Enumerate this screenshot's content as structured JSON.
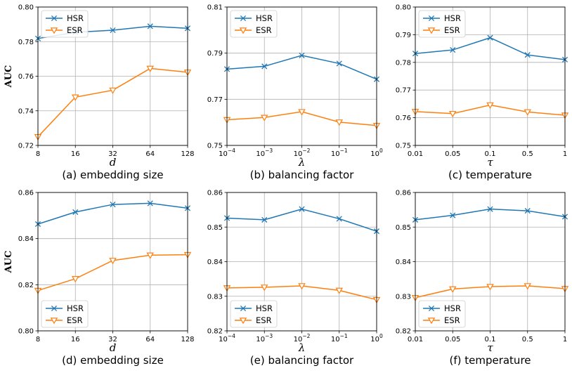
{
  "figure": {
    "colors": {
      "hsr": "#1f77b4",
      "esr": "#ff7f0e",
      "grid": "#b0b0b0"
    },
    "legend_labels": {
      "hsr": "HSR",
      "esr": "ESR"
    },
    "ylabel_text": "AUC"
  },
  "chart_data": [
    {
      "type": "line",
      "caption": "(a) embedding size",
      "xsymbol": "d",
      "xlabels": [
        {
          "b": "8"
        },
        {
          "b": "16"
        },
        {
          "b": "32"
        },
        {
          "b": "64"
        },
        {
          "b": "128"
        }
      ],
      "ylim": [
        0.72,
        0.8
      ],
      "yticks": [
        "0.72",
        "0.74",
        "0.76",
        "0.78",
        "0.80"
      ],
      "legend": "top-left",
      "series": [
        {
          "name": "HSR",
          "values": [
            0.7818,
            0.7854,
            0.7866,
            0.7889,
            0.7877
          ]
        },
        {
          "name": "ESR",
          "values": [
            0.725,
            0.7479,
            0.7519,
            0.7645,
            0.7623
          ]
        }
      ]
    },
    {
      "type": "line",
      "caption": "(b) balancing factor",
      "xsymbol": "λ",
      "xlabels": [
        {
          "b": "10",
          "e": "−4"
        },
        {
          "b": "10",
          "e": "−3"
        },
        {
          "b": "10",
          "e": "−2"
        },
        {
          "b": "10",
          "e": "−1"
        },
        {
          "b": "10",
          "e": "0"
        }
      ],
      "ylim": [
        0.75,
        0.81
      ],
      "yticks": [
        "0.75",
        "0.77",
        "0.79",
        "0.81"
      ],
      "legend": "top-left",
      "series": [
        {
          "name": "HSR",
          "values": [
            0.7831,
            0.7843,
            0.789,
            0.7855,
            0.7787
          ]
        },
        {
          "name": "ESR",
          "values": [
            0.7611,
            0.7621,
            0.7646,
            0.7601,
            0.7586
          ]
        }
      ]
    },
    {
      "type": "line",
      "caption": "(c) temperature",
      "xsymbol": "τ",
      "xlabels": [
        {
          "b": "0.01"
        },
        {
          "b": "0.05"
        },
        {
          "b": "0.1"
        },
        {
          "b": "0.5"
        },
        {
          "b": "1"
        }
      ],
      "ylim": [
        0.75,
        0.8
      ],
      "yticks": [
        "0.75",
        "0.76",
        "0.77",
        "0.78",
        "0.79",
        "0.80"
      ],
      "legend": "top-left",
      "series": [
        {
          "name": "HSR",
          "values": [
            0.7832,
            0.7845,
            0.7889,
            0.7827,
            0.781
          ]
        },
        {
          "name": "ESR",
          "values": [
            0.7622,
            0.7615,
            0.7646,
            0.7621,
            0.7609
          ]
        }
      ]
    },
    {
      "type": "line",
      "caption": "(d) embedding size",
      "xsymbol": "d",
      "xlabels": [
        {
          "b": "8"
        },
        {
          "b": "16"
        },
        {
          "b": "32"
        },
        {
          "b": "64"
        },
        {
          "b": "128"
        }
      ],
      "ylim": [
        0.8,
        0.86
      ],
      "yticks": [
        "0.80",
        "0.82",
        "0.84",
        "0.86"
      ],
      "legend": "bottom-left",
      "series": [
        {
          "name": "HSR",
          "values": [
            0.8463,
            0.8515,
            0.8548,
            0.8553,
            0.8532
          ]
        },
        {
          "name": "ESR",
          "values": [
            0.8175,
            0.8226,
            0.8305,
            0.8328,
            0.833
          ]
        }
      ]
    },
    {
      "type": "line",
      "caption": "(e) balancing factor",
      "xsymbol": "λ",
      "xlabels": [
        {
          "b": "10",
          "e": "−4"
        },
        {
          "b": "10",
          "e": "−3"
        },
        {
          "b": "10",
          "e": "−2"
        },
        {
          "b": "10",
          "e": "−1"
        },
        {
          "b": "10",
          "e": "0"
        }
      ],
      "ylim": [
        0.82,
        0.86
      ],
      "yticks": [
        "0.82",
        "0.83",
        "0.84",
        "0.85",
        "0.86"
      ],
      "legend": "bottom-left",
      "series": [
        {
          "name": "HSR",
          "values": [
            0.8526,
            0.8521,
            0.8552,
            0.8524,
            0.8488
          ]
        },
        {
          "name": "ESR",
          "values": [
            0.8324,
            0.8326,
            0.833,
            0.8317,
            0.829
          ]
        }
      ]
    },
    {
      "type": "line",
      "caption": "(f) temperature",
      "xsymbol": "τ",
      "xlabels": [
        {
          "b": "0.01"
        },
        {
          "b": "0.05"
        },
        {
          "b": "0.1"
        },
        {
          "b": "0.5"
        },
        {
          "b": "1"
        }
      ],
      "ylim": [
        0.82,
        0.86
      ],
      "yticks": [
        "0.82",
        "0.83",
        "0.84",
        "0.85",
        "0.86"
      ],
      "legend": "bottom-left",
      "series": [
        {
          "name": "HSR",
          "values": [
            0.8521,
            0.8534,
            0.8552,
            0.8547,
            0.853
          ]
        },
        {
          "name": "ESR",
          "values": [
            0.8296,
            0.8321,
            0.8328,
            0.833,
            0.8322
          ]
        }
      ]
    }
  ]
}
